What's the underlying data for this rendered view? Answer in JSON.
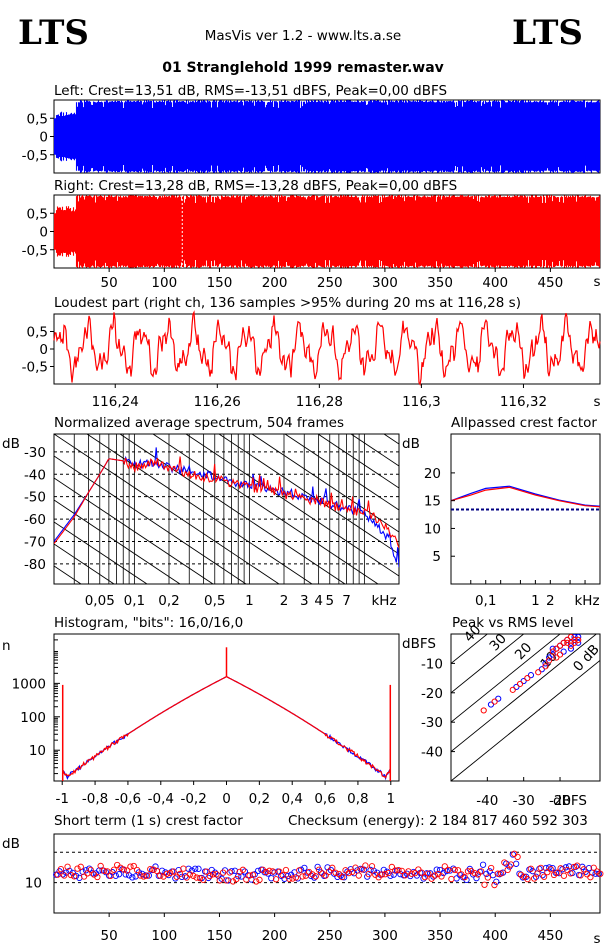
{
  "header": {
    "logo_left": "LTS",
    "logo_right": "LTS",
    "app_title": "MasVis ver 1.2 - www.lts.a.se",
    "file_name": "01 Stranglehold 1999 remaster.wav"
  },
  "colors": {
    "left": "#0000ff",
    "right": "#ff0000",
    "axis": "#000000",
    "grid": "#000000"
  },
  "chart_data": [
    {
      "id": "waveform-left",
      "type": "area",
      "title": "Left: Crest=13,51 dB, RMS=-13,51 dBFS, Peak=0,00 dBFS",
      "ylim": [
        -1,
        1
      ],
      "y_ticks": [
        "0.5",
        "0",
        "-0.5"
      ],
      "xlim": [
        0,
        495
      ],
      "series": [
        {
          "name": "Left",
          "color": "#0000ff"
        }
      ]
    },
    {
      "id": "waveform-right",
      "type": "area",
      "title": "Right: Crest=13,28 dB, RMS=-13,28 dBFS, Peak=0,00 dBFS",
      "ylim": [
        -1,
        1
      ],
      "y_ticks": [
        "0.5",
        "0",
        "-0.5"
      ],
      "xlim": [
        0,
        495
      ],
      "x_ticks": [
        "50",
        "100",
        "150",
        "200",
        "250",
        "300",
        "350",
        "400",
        "450"
      ],
      "x_unit": "s",
      "marker_s": 116.28,
      "series": [
        {
          "name": "Right",
          "color": "#ff0000"
        }
      ]
    },
    {
      "id": "loudest-part",
      "type": "line",
      "title": "Loudest part (right ch, 136 samples >95% during 20 ms at 116,28 s)",
      "ylim": [
        -1,
        1
      ],
      "y_ticks": [
        "0.5",
        "0",
        "-0.5"
      ],
      "xlim": [
        116.228,
        116.335
      ],
      "x_ticks": [
        "116,24",
        "116,26",
        "116,28",
        "116,3",
        "116,32"
      ],
      "x_unit": "s"
    },
    {
      "id": "spectrum",
      "type": "line",
      "title": "Normalized average spectrum, 504 frames",
      "ylabel": "dB",
      "y_ticks": [
        "-30",
        "-40",
        "-50",
        "-60",
        "-70",
        "-80"
      ],
      "ylim": [
        -89,
        -22
      ],
      "x_scale": "log",
      "xlim": [
        0.02,
        20
      ],
      "x_ticks": [
        "0,05",
        "0,1",
        "0,2",
        "0,5",
        "1",
        "2",
        "3",
        "4",
        "5",
        "7"
      ],
      "x_unit": "kHz",
      "series": [
        {
          "name": "Left",
          "color": "#0000ff",
          "x": [
            0.02,
            0.03,
            0.04,
            0.05,
            0.06,
            0.08,
            0.1,
            0.12,
            0.15,
            0.2,
            0.3,
            0.5,
            0.7,
            1,
            1.5,
            2,
            3,
            4,
            5,
            7,
            10,
            12,
            15,
            20
          ],
          "values": [
            -70,
            -58,
            -48,
            -40,
            -33,
            -34,
            -36,
            -35,
            -35,
            -37,
            -39,
            -41,
            -43,
            -45,
            -46,
            -48,
            -50,
            -52,
            -53,
            -55,
            -58,
            -62,
            -66,
            -80
          ]
        },
        {
          "name": "Right",
          "color": "#ff0000",
          "x": [
            0.02,
            0.03,
            0.04,
            0.05,
            0.06,
            0.08,
            0.1,
            0.12,
            0.15,
            0.2,
            0.3,
            0.5,
            0.7,
            1,
            1.5,
            2,
            3,
            4,
            5,
            7,
            10,
            12,
            15,
            20
          ],
          "values": [
            -71,
            -59,
            -48,
            -40,
            -33,
            -34,
            -37,
            -36,
            -34,
            -37,
            -40,
            -42,
            -44,
            -46,
            -47,
            -49,
            -51,
            -52,
            -54,
            -56,
            -57,
            -59,
            -63,
            -72
          ]
        }
      ]
    },
    {
      "id": "allpassed-crest",
      "type": "line",
      "title": "Allpassed crest factor",
      "ylabel": "dB",
      "y_ticks": [
        "20",
        "15",
        "10",
        "5"
      ],
      "ylim": [
        0,
        27
      ],
      "x_scale": "log",
      "xlim": [
        0.02,
        20
      ],
      "x_ticks": [
        "0,1",
        "1",
        "2"
      ],
      "x_unit": "kHz",
      "reference_db": 13.4,
      "series": [
        {
          "name": "Left",
          "color": "#0000ff",
          "x": [
            0.02,
            0.05,
            0.1,
            0.3,
            1,
            3,
            10,
            20
          ],
          "values": [
            15,
            16.3,
            17.2,
            17.6,
            16.2,
            15.1,
            14.2,
            14
          ]
        },
        {
          "name": "Right",
          "color": "#ff0000",
          "x": [
            0.02,
            0.05,
            0.1,
            0.3,
            1,
            3,
            10,
            20
          ],
          "values": [
            15,
            16.0,
            16.9,
            17.4,
            16.0,
            15.0,
            14.1,
            13.9
          ]
        }
      ]
    },
    {
      "id": "histogram",
      "type": "line",
      "title": "Histogram, \"bits\": 16,0/16,0",
      "ylabel": "n",
      "y_scale": "log",
      "y_ticks": [
        "1000",
        "100",
        "10"
      ],
      "ylim": [
        1.2,
        30000
      ],
      "xlim": [
        -1.05,
        1.05
      ],
      "x_ticks": [
        "-1",
        "-0,8",
        "-0,6",
        "-0,4",
        "-0,2",
        "0",
        "0,2",
        "0,4",
        "0,6",
        "0,8",
        "1"
      ],
      "series": [
        {
          "name": "Left",
          "color": "#0000ff"
        },
        {
          "name": "Right",
          "color": "#ff0000"
        }
      ]
    },
    {
      "id": "peak-vs-rms",
      "type": "scatter",
      "title": "Peak vs RMS level",
      "ylabel": "dBFS",
      "xlabel": "dBFS",
      "y_ticks": [
        "-10",
        "-20",
        "-30",
        "-40"
      ],
      "x_ticks": [
        "-40",
        "-30",
        "-20"
      ],
      "xlim": [
        -50,
        -9
      ],
      "ylim": [
        -50,
        0
      ],
      "diagonal_labels": [
        "40",
        "30",
        "20",
        "10",
        "0 dB"
      ],
      "series": [
        {
          "name": "Left",
          "color": "#0000ff",
          "x": [
            -39,
            -37,
            -32,
            -30,
            -28,
            -25,
            -24,
            -23,
            -22,
            -22,
            -21,
            -20,
            -19,
            -19,
            -18,
            -17,
            -17,
            -16,
            -16,
            -15,
            -15
          ],
          "values": [
            -24,
            -22,
            -18,
            -16,
            -14,
            -12,
            -10,
            -8,
            -7,
            -5,
            -5,
            -4,
            -3,
            -6,
            -2,
            -3,
            -5,
            -1,
            -2,
            -1,
            -3
          ]
        },
        {
          "name": "Right",
          "color": "#ff0000",
          "x": [
            -41,
            -38,
            -33,
            -31,
            -29,
            -26,
            -24,
            -23,
            -22,
            -21,
            -21,
            -20,
            -20,
            -19,
            -18,
            -18,
            -17,
            -17,
            -16,
            -16,
            -15
          ],
          "values": [
            -26,
            -23,
            -19,
            -17,
            -15,
            -13,
            -11,
            -9,
            -6,
            -8,
            -5,
            -4,
            -7,
            -3,
            -3,
            -2,
            -4,
            -1,
            -2,
            -3,
            -2
          ]
        }
      ]
    },
    {
      "id": "short-term-crest",
      "type": "scatter",
      "title": "Short term (1 s) crest factor",
      "note": "Checksum (energy):  2 184 817 460 592 303",
      "ylabel": "dB",
      "y_ticks": [
        "10"
      ],
      "ylim": [
        0,
        26
      ],
      "xlim": [
        0,
        495
      ],
      "x_ticks": [
        "50",
        "100",
        "150",
        "200",
        "250",
        "300",
        "350",
        "400",
        "450"
      ],
      "x_unit": "s",
      "series": [
        {
          "name": "Left",
          "color": "#0000ff"
        },
        {
          "name": "Right",
          "color": "#ff0000"
        }
      ]
    }
  ]
}
